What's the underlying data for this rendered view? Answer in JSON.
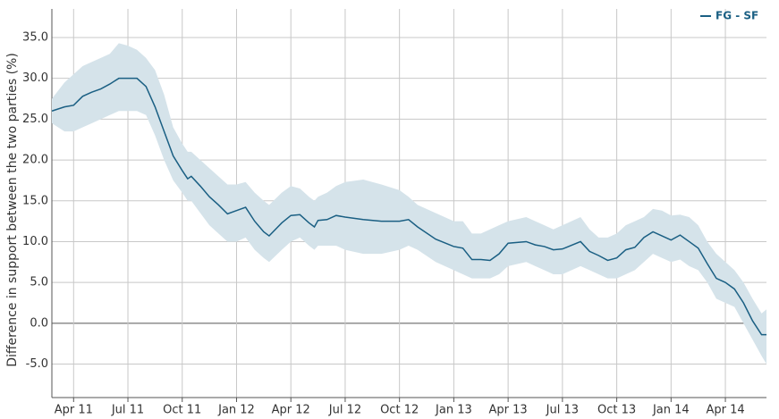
{
  "chart_data": {
    "type": "line",
    "y_label": "Difference in support between the two parties (%)",
    "x": [
      1.8,
      2.5,
      3,
      3.5,
      4,
      4.5,
      5,
      5.5,
      6,
      6.5,
      7,
      7.5,
      8,
      8.5,
      9,
      9.3,
      9.5,
      10,
      10.5,
      11,
      11.5,
      12,
      12.5,
      13,
      13.5,
      13.8,
      14.5,
      15,
      15.5,
      16,
      16.3,
      16.5,
      17,
      17.5,
      18,
      19,
      20,
      21,
      21.5,
      22,
      23,
      24,
      24.5,
      25,
      25.5,
      26,
      26.5,
      27,
      28,
      28.5,
      29,
      29.5,
      30,
      31,
      31.5,
      32,
      32.5,
      33,
      33.5,
      34,
      34.5,
      35,
      35.5,
      36,
      36.5,
      37,
      37.5,
      38,
      38.5,
      39,
      39.5,
      40,
      40.5,
      41,
      41.27
    ],
    "series": [
      {
        "name": "FG - SF",
        "color": "#1a5f83",
        "band_color": "#d5e3ea",
        "values": [
          26.0,
          26.5,
          26.7,
          27.8,
          28.3,
          28.7,
          29.3,
          30.0,
          30.0,
          30.0,
          29.0,
          26.5,
          23.5,
          20.5,
          18.7,
          17.7,
          18.0,
          16.8,
          15.5,
          14.5,
          13.4,
          13.8,
          14.2,
          12.5,
          11.2,
          10.7,
          12.3,
          13.2,
          13.3,
          12.3,
          11.8,
          12.6,
          12.7,
          13.2,
          13.0,
          12.7,
          12.5,
          12.5,
          12.7,
          11.8,
          10.3,
          9.4,
          9.2,
          7.8,
          7.8,
          7.7,
          8.5,
          9.8,
          10.0,
          9.6,
          9.4,
          9.0,
          9.1,
          10.0,
          8.8,
          8.3,
          7.7,
          8.0,
          9.0,
          9.3,
          10.5,
          11.2,
          10.7,
          10.2,
          10.8,
          10.0,
          9.2,
          7.3,
          5.5,
          5.0,
          4.2,
          2.5,
          0.3,
          -1.4,
          -1.4
        ],
        "lower": [
          24.5,
          23.5,
          23.5,
          24,
          24.5,
          25,
          25.5,
          26,
          26,
          26,
          25.5,
          23,
          20,
          17.5,
          16,
          15,
          15,
          13.5,
          12,
          11,
          10,
          10,
          10.5,
          9,
          8,
          7.5,
          9,
          10,
          10.5,
          9.5,
          9,
          9.5,
          9.5,
          9.5,
          9,
          8.5,
          8.5,
          9,
          9.5,
          9,
          7.5,
          6.5,
          6,
          5.5,
          5.5,
          5.5,
          6,
          7,
          7.5,
          7,
          6.5,
          6,
          6,
          7,
          6.5,
          6,
          5.5,
          5.5,
          6,
          6.5,
          7.5,
          8.5,
          8,
          7.5,
          7.8,
          7,
          6.5,
          5,
          3,
          2.5,
          2,
          0,
          -2,
          -4,
          -5
        ],
        "upper": [
          27.5,
          29.5,
          30.5,
          31.5,
          32,
          32.5,
          33,
          34.3,
          34,
          33.5,
          32.5,
          31,
          28,
          24,
          22,
          21,
          21,
          20,
          19,
          18,
          17,
          17,
          17.3,
          16,
          15,
          14.5,
          16,
          16.8,
          16.5,
          15.5,
          15,
          15.5,
          16,
          16.8,
          17.3,
          17.6,
          17,
          16.3,
          15.5,
          14.5,
          13.5,
          12.5,
          12.5,
          11,
          11,
          11.5,
          12,
          12.5,
          13,
          12.5,
          12,
          11.5,
          12,
          13,
          11.5,
          10.5,
          10.5,
          11,
          12,
          12.5,
          13,
          14,
          13.8,
          13.2,
          13.3,
          13,
          12,
          10,
          8.5,
          7.5,
          6.5,
          5,
          3,
          1.2,
          1.7
        ]
      }
    ],
    "xlim": [
      1.8,
      41.27
    ],
    "xticks": [
      {
        "value": 3,
        "label": "Apr 11"
      },
      {
        "value": 6,
        "label": "Jul 11"
      },
      {
        "value": 9,
        "label": "Oct 11"
      },
      {
        "value": 12,
        "label": "Jan 12"
      },
      {
        "value": 15,
        "label": "Apr 12"
      },
      {
        "value": 18,
        "label": "Jul 12"
      },
      {
        "value": 21,
        "label": "Oct 12"
      },
      {
        "value": 24,
        "label": "Jan 13"
      },
      {
        "value": 27,
        "label": "Apr 13"
      },
      {
        "value": 30,
        "label": "Jul 13"
      },
      {
        "value": 33,
        "label": "Oct 13"
      },
      {
        "value": 36,
        "label": "Jan 14"
      },
      {
        "value": 39,
        "label": "Apr 14"
      }
    ],
    "ylim": [
      -9.1,
      38.5
    ],
    "yticks": [
      {
        "value": -5,
        "label": "-5.0"
      },
      {
        "value": 0,
        "label": "0.0"
      },
      {
        "value": 5,
        "label": "5.0"
      },
      {
        "value": 10,
        "label": "10.0"
      },
      {
        "value": 15,
        "label": "15.0"
      },
      {
        "value": 20,
        "label": "20.0"
      },
      {
        "value": 25,
        "label": "25.0"
      },
      {
        "value": 30,
        "label": "30.0"
      },
      {
        "value": 35,
        "label": "35.0"
      }
    ],
    "grid": true,
    "legend": "top-right"
  }
}
